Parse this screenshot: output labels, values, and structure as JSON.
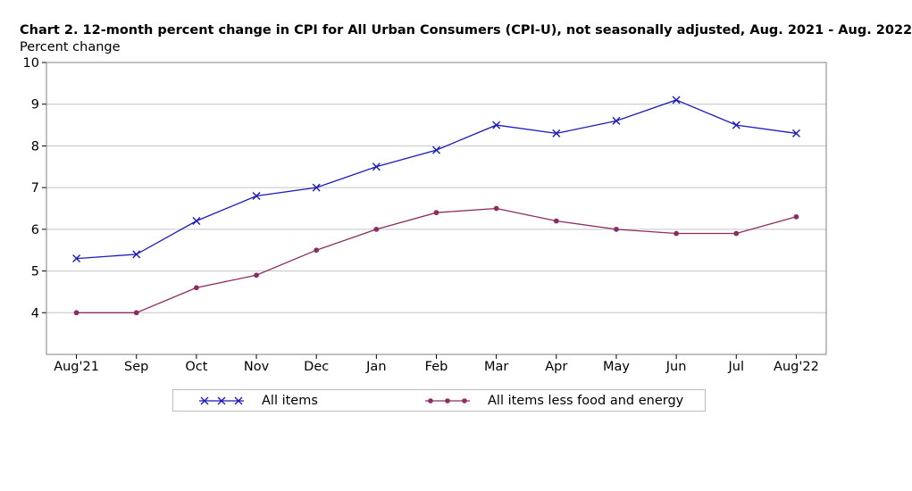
{
  "chart": {
    "title": "Chart 2. 12-month percent change in CPI for All Urban Consumers (CPI-U), not seasonally adjusted, Aug. 2021 - Aug. 2022",
    "ylabel": "Percent change"
  },
  "chart_data": {
    "type": "line",
    "title": "Chart 2. 12-month percent change in CPI for All Urban Consumers (CPI-U), not seasonally adjusted, Aug. 2021 - Aug. 2022",
    "ylabel": "Percent change",
    "xlabel": "",
    "categories": [
      "Aug'21",
      "Sep",
      "Oct",
      "Nov",
      "Dec",
      "Jan",
      "Feb",
      "Mar",
      "Apr",
      "May",
      "Jun",
      "Jul",
      "Aug'22"
    ],
    "ylim": [
      3,
      10
    ],
    "yticks": [
      4,
      5,
      6,
      7,
      8,
      9,
      10
    ],
    "grid": true,
    "legend_position": "bottom",
    "series": [
      {
        "name": "All items",
        "values": [
          5.3,
          5.4,
          6.2,
          6.8,
          7.0,
          7.5,
          7.9,
          8.5,
          8.3,
          8.6,
          9.1,
          8.5,
          8.3
        ],
        "color": "#1a1ab8",
        "marker": "x"
      },
      {
        "name": "All items less food and energy",
        "values": [
          4.0,
          4.0,
          4.6,
          4.9,
          5.5,
          6.0,
          6.4,
          6.5,
          6.2,
          6.0,
          5.9,
          5.9,
          6.3
        ],
        "color": "#8b2d62",
        "marker": "dot"
      }
    ]
  }
}
